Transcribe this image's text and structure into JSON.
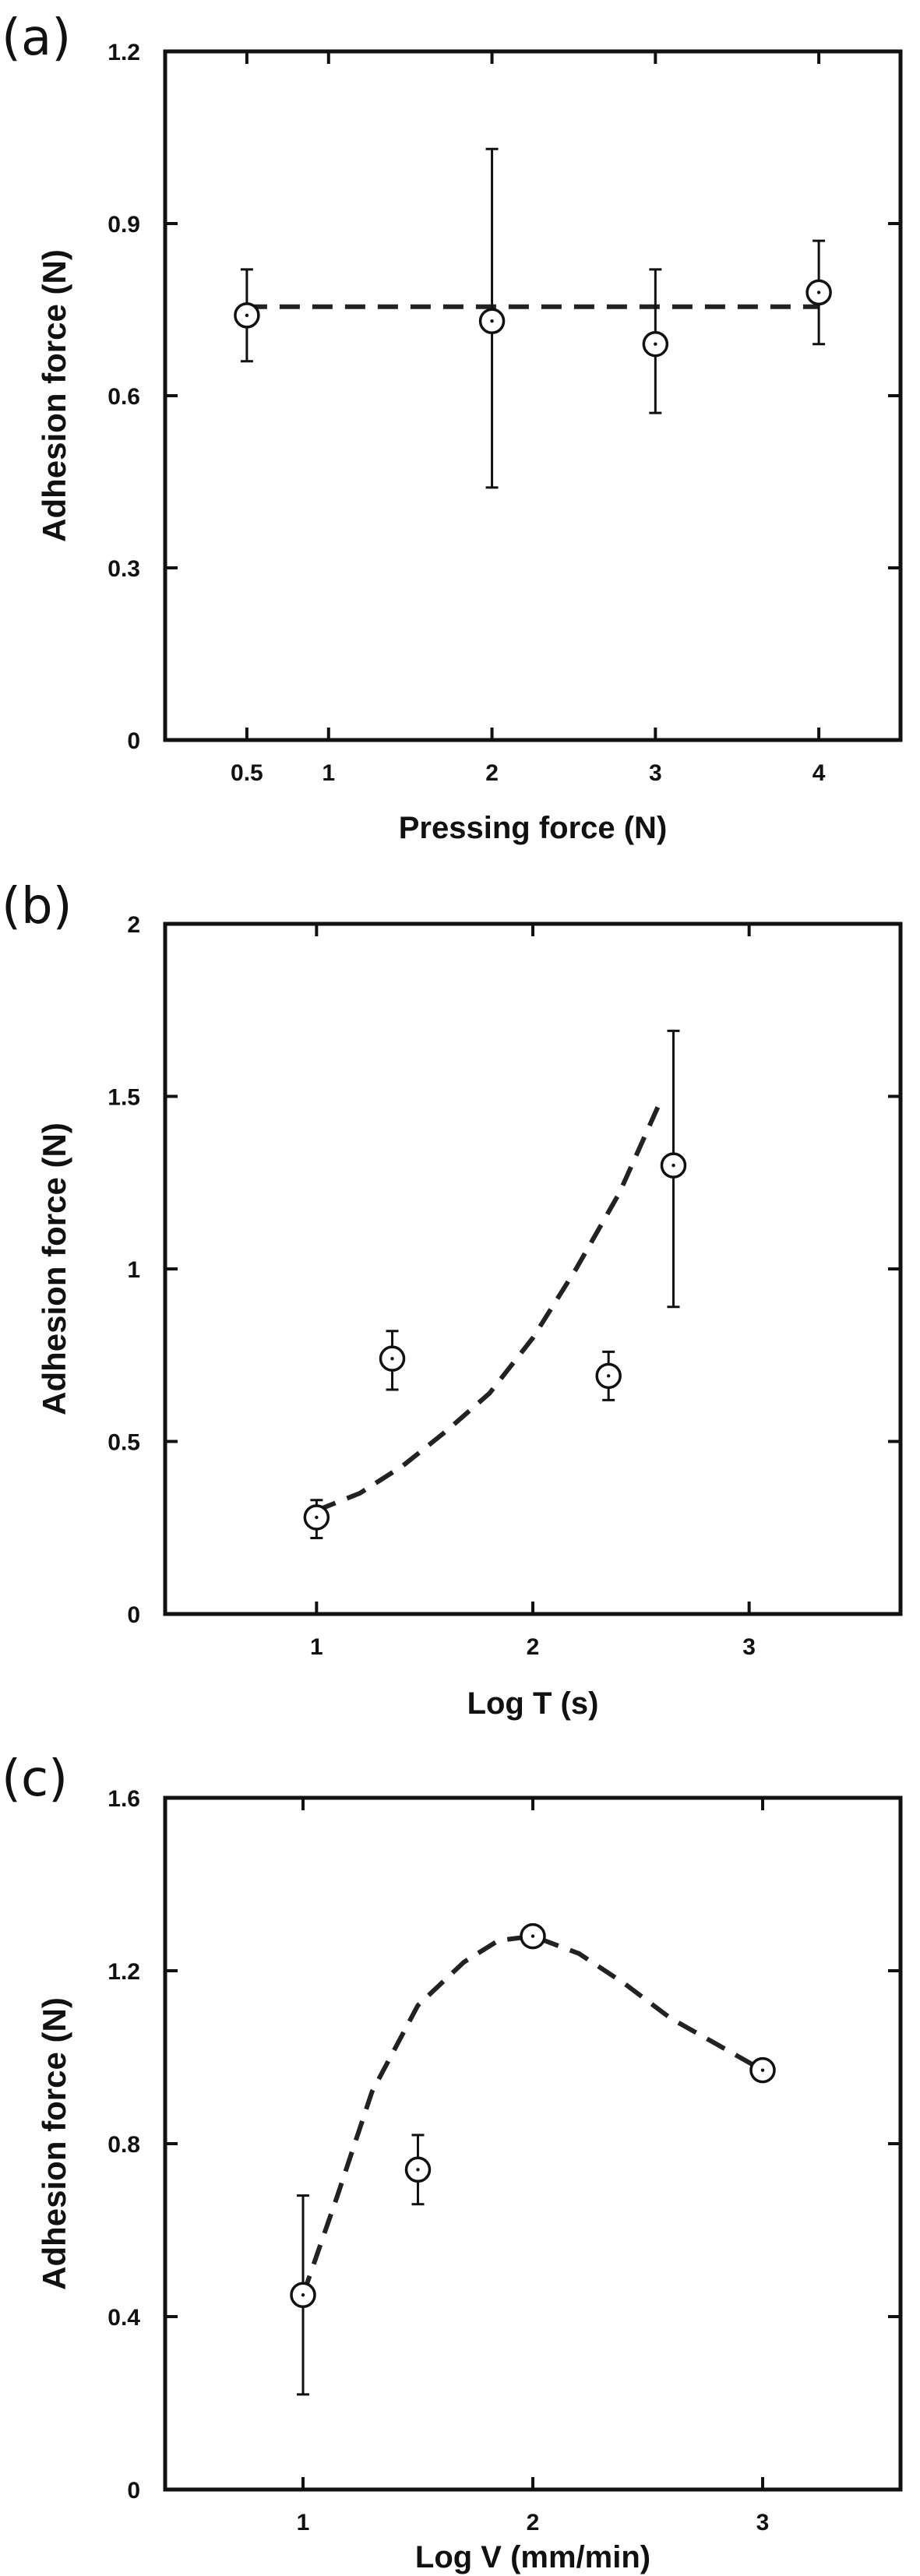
{
  "chart_data": [
    {
      "type": "scatter",
      "panel_label": "(a)",
      "xlabel": "Pressing force (N)",
      "ylabel": "Adhesion force (N)",
      "xlim": [
        0,
        4.5
      ],
      "ylim": [
        0,
        1.2
      ],
      "xticks": [
        0.5,
        1,
        2,
        3,
        4
      ],
      "xtick_labels": [
        "0.5",
        "1",
        "2",
        "3",
        "4"
      ],
      "yticks": [
        0,
        0.3,
        0.6,
        0.9,
        1.2
      ],
      "ytick_labels": [
        "0",
        "0.3",
        "0.6",
        "0.9",
        "1.2"
      ],
      "grid": false,
      "points": [
        {
          "x": 0.5,
          "y": 0.74,
          "err_low": 0.66,
          "err_high": 0.82
        },
        {
          "x": 2,
          "y": 0.73,
          "err_low": 0.44,
          "err_high": 1.03
        },
        {
          "x": 3,
          "y": 0.69,
          "err_low": 0.57,
          "err_high": 0.82
        },
        {
          "x": 4,
          "y": 0.78,
          "err_low": 0.69,
          "err_high": 0.87
        }
      ],
      "fit_line": {
        "x": [
          0.5,
          4
        ],
        "y": [
          0.755,
          0.755
        ]
      }
    },
    {
      "type": "scatter",
      "panel_label": "(b)",
      "xlabel": "Log T (s)",
      "ylabel": "Adhesion force (N)",
      "xlim": [
        0.3,
        3.7
      ],
      "ylim": [
        0,
        2
      ],
      "xticks": [
        1,
        2,
        3
      ],
      "xtick_labels": [
        "1",
        "2",
        "3"
      ],
      "yticks": [
        0,
        0.5,
        1,
        1.5,
        2
      ],
      "ytick_labels": [
        "0",
        "0.5",
        "1",
        "1.5",
        "2"
      ],
      "grid": false,
      "points": [
        {
          "x": 1.0,
          "y": 0.28,
          "err_low": 0.22,
          "err_high": 0.33
        },
        {
          "x": 1.35,
          "y": 0.74,
          "err_low": 0.65,
          "err_high": 0.82
        },
        {
          "x": 2.35,
          "y": 0.69,
          "err_low": 0.62,
          "err_high": 0.76
        },
        {
          "x": 2.65,
          "y": 1.3,
          "err_low": 0.89,
          "err_high": 1.69
        }
      ],
      "fit_line": {
        "x": [
          1.0,
          1.2,
          1.4,
          1.6,
          1.8,
          2.0,
          2.2,
          2.4,
          2.6
        ],
        "y": [
          0.3,
          0.35,
          0.43,
          0.53,
          0.64,
          0.8,
          1.0,
          1.22,
          1.5
        ]
      }
    },
    {
      "type": "scatter",
      "panel_label": "(c)",
      "xlabel": "Log V (mm/min)",
      "ylabel": "Adhesion force (N)",
      "xlim": [
        0.4,
        3.6
      ],
      "ylim": [
        0,
        1.6
      ],
      "xticks": [
        1,
        2,
        3
      ],
      "xtick_labels": [
        "1",
        "2",
        "3"
      ],
      "yticks": [
        0,
        0.4,
        0.8,
        1.2,
        1.6
      ],
      "ytick_labels": [
        "0",
        "0.4",
        "0.8",
        "1.2",
        "1.6"
      ],
      "grid": false,
      "points": [
        {
          "x": 1.0,
          "y": 0.45,
          "err_low": 0.22,
          "err_high": 0.68
        },
        {
          "x": 1.5,
          "y": 0.74,
          "err_low": 0.66,
          "err_high": 0.82
        },
        {
          "x": 2.0,
          "y": 1.28,
          "err_low": 1.27,
          "err_high": 1.29
        },
        {
          "x": 3.0,
          "y": 0.97,
          "err_low": 0.96,
          "err_high": 0.98
        }
      ],
      "fit_line": {
        "x": [
          1.0,
          1.15,
          1.3,
          1.5,
          1.7,
          1.85,
          2.0,
          2.2,
          2.4,
          2.6,
          2.8,
          3.0
        ],
        "y": [
          0.45,
          0.68,
          0.92,
          1.12,
          1.22,
          1.27,
          1.28,
          1.24,
          1.17,
          1.09,
          1.03,
          0.97
        ]
      }
    }
  ]
}
